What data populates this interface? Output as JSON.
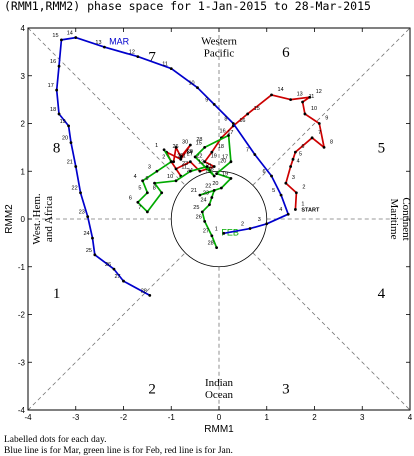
{
  "title": "(RMM1,RMM2) phase space for  1-Jan-2015 to 28-Mar-2015",
  "footer": {
    "line1": "Labelled dots for each day.",
    "line2": "Blue line is for Mar, green line is for Feb, red line is for Jan."
  },
  "chart_data": {
    "type": "line",
    "xlabel": "RMM1",
    "ylabel": "RMM2",
    "xlim": [
      -4,
      4
    ],
    "ylim": [
      -4,
      4
    ],
    "xticks": [
      "-4",
      "-3",
      "-2",
      "-1",
      "0",
      "1",
      "2",
      "3",
      "4"
    ],
    "yticks": [
      "-4",
      "-3",
      "-2",
      "-1",
      "0",
      "1",
      "2",
      "3",
      "4"
    ],
    "unit_circle_radius": 1,
    "phases": [
      "1",
      "2",
      "3",
      "4",
      "5",
      "6",
      "7",
      "8"
    ],
    "regions": {
      "top": [
        "Western",
        "Pacific"
      ],
      "bottom": [
        "Indian",
        "Ocean"
      ],
      "left": [
        "West. Hem.",
        "and Africa"
      ],
      "right": [
        "Maritime",
        "Continent"
      ]
    },
    "annotations": [
      "START"
    ],
    "series": [
      {
        "name": "Jan",
        "color": "#cc0000",
        "month_label": "",
        "days": [
          "1",
          "2",
          "3",
          "4",
          "5",
          "6",
          "7",
          "8",
          "9",
          "10",
          "11",
          "12",
          "13",
          "14",
          "15",
          "16",
          "17",
          "18",
          "19",
          "20",
          "21",
          "22",
          "23",
          "24",
          "25",
          "26",
          "27",
          "28",
          "29",
          "30",
          "31"
        ],
        "x": [
          1.6,
          1.62,
          1.4,
          1.5,
          1.55,
          1.6,
          1.95,
          2.2,
          2.1,
          1.8,
          1.75,
          1.9,
          1.5,
          1.1,
          0.6,
          0.3,
          0.05,
          -0.15,
          -0.3,
          -0.1,
          -0.4,
          -0.6,
          -0.9,
          -0.8,
          -1.0,
          -1.1,
          -0.8,
          -0.6,
          -0.8,
          -0.9,
          -0.95
        ],
        "y": [
          0.2,
          0.55,
          0.75,
          1.1,
          1.25,
          1.4,
          1.7,
          1.5,
          2.0,
          2.2,
          2.45,
          2.55,
          2.5,
          2.6,
          2.2,
          1.95,
          1.7,
          1.4,
          1.2,
          1.1,
          1.0,
          1.2,
          1.05,
          0.9,
          1.2,
          1.4,
          1.25,
          1.55,
          1.3,
          1.5,
          1.2
        ]
      },
      {
        "name": "Feb",
        "color": "#00aa00",
        "month_label": "FEB",
        "days": [
          "1",
          "2",
          "3",
          "4",
          "5",
          "6",
          "7",
          "8",
          "9",
          "10",
          "11",
          "12",
          "13",
          "14",
          "15",
          "16",
          "17",
          "18",
          "19",
          "20",
          "21",
          "22",
          "23",
          "24",
          "25",
          "26",
          "27",
          "28"
        ],
        "x": [
          -1.15,
          -1.0,
          -1.3,
          -1.6,
          -1.5,
          -1.7,
          -1.5,
          -1.2,
          -1.35,
          -0.9,
          -0.6,
          -0.25,
          -0.1,
          -0.5,
          -0.3,
          0.2,
          0.25,
          -0.05,
          0.25,
          0.05,
          -0.4,
          -0.1,
          -0.15,
          -0.2,
          -0.35,
          -0.3,
          -0.15,
          -0.05
        ],
        "y": [
          1.45,
          1.2,
          1.0,
          0.8,
          0.55,
          0.35,
          0.15,
          0.55,
          0.75,
          0.8,
          1.0,
          1.1,
          0.9,
          1.3,
          1.5,
          1.75,
          1.2,
          0.95,
          0.85,
          0.65,
          0.5,
          0.6,
          0.45,
          0.3,
          0.15,
          -0.05,
          -0.35,
          -0.6
        ]
      },
      {
        "name": "Mar",
        "color": "#0000cc",
        "month_label": "MAR",
        "days": [
          "1",
          "2",
          "3",
          "4",
          "5",
          "6",
          "7",
          "8",
          "9",
          "10",
          "11",
          "12",
          "13",
          "14",
          "15",
          "16",
          "17",
          "18",
          "19",
          "20",
          "21",
          "22",
          "23",
          "24",
          "25",
          "26",
          "27",
          "28"
        ],
        "x": [
          0.1,
          0.65,
          1.0,
          1.45,
          1.3,
          1.1,
          0.75,
          0.3,
          -0.1,
          -0.45,
          -1.0,
          -1.7,
          -2.4,
          -3.0,
          -3.3,
          -3.35,
          -3.4,
          -3.35,
          -3.15,
          -3.1,
          -3.0,
          -2.9,
          -2.75,
          -2.65,
          -2.6,
          -2.2,
          -2.0,
          -1.45
        ],
        "y": [
          -0.3,
          -0.2,
          -0.1,
          0.1,
          0.5,
          0.9,
          1.35,
          2.0,
          2.4,
          2.75,
          3.15,
          3.4,
          3.6,
          3.8,
          3.75,
          3.2,
          2.7,
          2.2,
          1.95,
          1.6,
          1.1,
          0.55,
          0.05,
          -0.4,
          -0.75,
          -1.05,
          -1.3,
          -1.6
        ]
      }
    ]
  }
}
